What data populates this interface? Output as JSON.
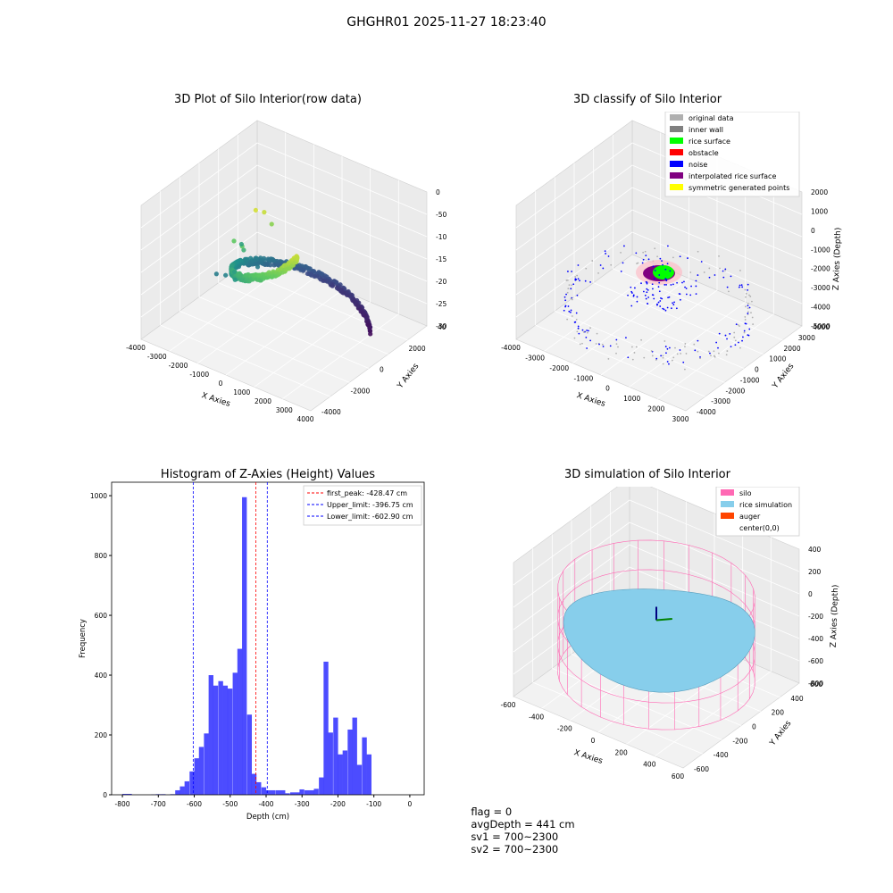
{
  "figure": {
    "suptitle": "GHGHR01 2025-11-27 18:23:40"
  },
  "panel_titles": {
    "raw": "3D Plot of Silo Interior(row data)",
    "classify": "3D classify of Silo Interior",
    "histogram": "Histogram of Z-Axies (Height) Values",
    "simulation": "3D simulation of Silo Interior"
  },
  "raw_axes": {
    "xlabel": "X Axies",
    "ylabel": "Y Axies",
    "zlabel": "Z Axies (Depth)",
    "xticks": [
      "-4000",
      "-3000",
      "-2000",
      "-1000",
      "0",
      "1000",
      "2000",
      "3000",
      "4000"
    ],
    "yticks": [
      "-4000",
      "-2000",
      "0",
      "2000",
      "4000"
    ],
    "zticks": [
      "0",
      "-500",
      "-1000",
      "-1500",
      "-2000",
      "-2500",
      "-3000"
    ]
  },
  "classify_axes": {
    "xlabel": "X Axies",
    "ylabel": "Y Axies",
    "zlabel": "Z Axies (Depth)",
    "xticks": [
      "-4000",
      "-3000",
      "-2000",
      "-1000",
      "0",
      "1000",
      "2000",
      "3000"
    ],
    "yticks": [
      "-4000",
      "-3000",
      "-2000",
      "-1000",
      "0",
      "1000",
      "2000",
      "3000",
      "4000"
    ],
    "zticks": [
      "2000",
      "1000",
      "0",
      "-1000",
      "-2000",
      "-3000",
      "-4000",
      "-5000"
    ],
    "legend": [
      {
        "label": "original data",
        "color": "#b0b0b0"
      },
      {
        "label": "inner wall",
        "color": "#808080"
      },
      {
        "label": "rice surface",
        "color": "#00ff00"
      },
      {
        "label": "obstacle",
        "color": "#ff0000"
      },
      {
        "label": "noise",
        "color": "#0000ff"
      },
      {
        "label": "interpolated rice surface",
        "color": "#800080"
      },
      {
        "label": "symmetric generated points",
        "color": "#ffff00"
      }
    ]
  },
  "simulation_axes": {
    "xlabel": "X Axies",
    "ylabel": "Y Axies",
    "zlabel": "Z Axies (Depth)",
    "xticks": [
      "-600",
      "-400",
      "-200",
      "0",
      "200",
      "400",
      "600"
    ],
    "yticks": [
      "-600",
      "-400",
      "-200",
      "0",
      "200",
      "400",
      "600"
    ],
    "zticks": [
      "400",
      "200",
      "0",
      "-200",
      "-400",
      "-600",
      "-800"
    ],
    "legend": [
      {
        "label": "silo",
        "color": "#ff69b4"
      },
      {
        "label": "rice simulation",
        "color": "#87ceeb"
      },
      {
        "label": "auger",
        "color": "#ff4500"
      },
      {
        "label": "center(0,0)",
        "color": ""
      }
    ]
  },
  "status": {
    "flag": "flag = 0",
    "avg_depth": "avgDepth = 441 cm",
    "sv1": "sv1 = 700~2300",
    "sv2": "sv2 = 700~2300"
  },
  "chart_data": [
    {
      "type": "scatter",
      "title": "3D Plot of Silo Interior(row data)",
      "xlabel": "X Axies",
      "ylabel": "Y Axies",
      "zlabel": "Z Axies (Depth)",
      "xlim": [
        -4000,
        4000
      ],
      "ylim": [
        -4000,
        4000
      ],
      "zlim": [
        -3200,
        0
      ],
      "colormap": "viridis",
      "grid": true
    },
    {
      "type": "scatter",
      "title": "3D classify of Silo Interior",
      "xlabel": "X Axies",
      "ylabel": "Y Axies",
      "zlabel": "Z Axies (Depth)",
      "xlim": [
        -4000,
        3500
      ],
      "ylim": [
        -4000,
        4000
      ],
      "zlim": [
        -5000,
        2000
      ],
      "legend_position": "top-right",
      "grid": true
    },
    {
      "type": "bar",
      "title": "Histogram of Z-Axies (Height) Values",
      "xlabel": "Depth (cm)",
      "ylabel": "Frequency",
      "xlim": [
        -830,
        40
      ],
      "ylim": [
        0,
        1045
      ],
      "xticks": [
        -800,
        -700,
        -600,
        -500,
        -400,
        -300,
        -200,
        -100,
        0
      ],
      "yticks": [
        0,
        200,
        400,
        600,
        800,
        1000
      ],
      "bar_color": "#0000ff",
      "bin_width": 13.3,
      "bins": [
        [
          -800,
          3
        ],
        [
          -787,
          3
        ],
        [
          -720,
          1
        ],
        [
          -707,
          2
        ],
        [
          -693,
          2
        ],
        [
          -667,
          2
        ],
        [
          -653,
          15
        ],
        [
          -640,
          28
        ],
        [
          -627,
          45
        ],
        [
          -613,
          78
        ],
        [
          -600,
          122
        ],
        [
          -587,
          160
        ],
        [
          -573,
          205
        ],
        [
          -560,
          400
        ],
        [
          -547,
          365
        ],
        [
          -533,
          380
        ],
        [
          -520,
          365
        ],
        [
          -507,
          355
        ],
        [
          -493,
          408
        ],
        [
          -480,
          488
        ],
        [
          -467,
          995
        ],
        [
          -453,
          268
        ],
        [
          -440,
          70
        ],
        [
          -427,
          42
        ],
        [
          -413,
          25
        ],
        [
          -400,
          15
        ],
        [
          -387,
          15
        ],
        [
          -373,
          15
        ],
        [
          -360,
          15
        ],
        [
          -347,
          5
        ],
        [
          -333,
          8
        ],
        [
          -320,
          8
        ],
        [
          -307,
          18
        ],
        [
          -293,
          15
        ],
        [
          -280,
          15
        ],
        [
          -267,
          20
        ],
        [
          -253,
          58
        ],
        [
          -240,
          445
        ],
        [
          -227,
          208
        ],
        [
          -213,
          258
        ],
        [
          -200,
          135
        ],
        [
          -187,
          148
        ],
        [
          -173,
          218
        ],
        [
          -160,
          258
        ],
        [
          -147,
          100
        ],
        [
          -133,
          192
        ],
        [
          -120,
          135
        ]
      ],
      "vlines": [
        {
          "name": "first_peak",
          "label": "first_peak: -428.47 cm",
          "x": -428.47,
          "color": "#ff0000"
        },
        {
          "name": "upper_limit",
          "label": "Upper_limit: -396.75 cm",
          "x": -396.75,
          "color": "#0000ff"
        },
        {
          "name": "lower_limit",
          "label": "Lower_limit: -602.90 cm",
          "x": -602.9,
          "color": "#0000ff"
        }
      ],
      "legend_position": "top-right"
    },
    {
      "type": "surface",
      "title": "3D simulation of Silo Interior",
      "xlabel": "X Axies",
      "ylabel": "Y Axies",
      "zlabel": "Z Axies (Depth)",
      "xlim": [
        -700,
        700
      ],
      "ylim": [
        -700,
        700
      ],
      "zlim": [
        -900,
        450
      ],
      "legend_position": "top-right",
      "grid": true
    }
  ]
}
